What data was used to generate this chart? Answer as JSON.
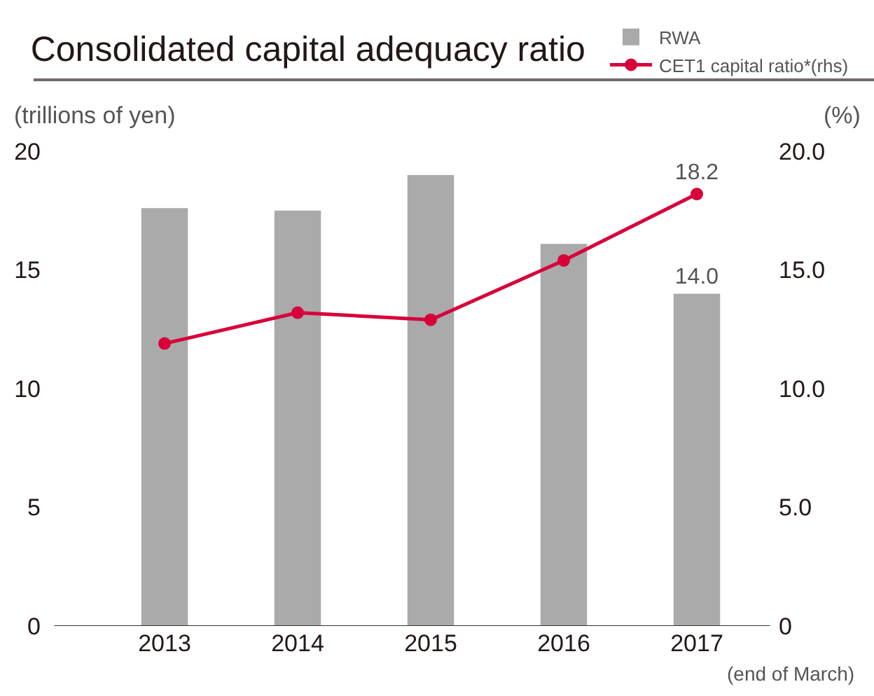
{
  "chart_data": {
    "type": "bar",
    "title": "Consolidated capital adequacy ratio",
    "ylabel": "(trillions of yen)",
    "y2label": "(%)",
    "xlabel": "(end of March)",
    "categories": [
      "2013",
      "2014",
      "2015",
      "2016",
      "2017"
    ],
    "series": [
      {
        "name": "RWA",
        "color": "#aaaaaa",
        "values": [
          17.6,
          17.5,
          19.0,
          16.1,
          14.0
        ],
        "value_labels": [
          null,
          null,
          null,
          null,
          "14.0"
        ]
      },
      {
        "name": "CET1 capital ratio*(rhs)",
        "type": "line",
        "axis": "y2",
        "color": "#d7003a",
        "values": [
          11.9,
          13.2,
          12.9,
          15.4,
          18.2
        ],
        "value_labels": [
          null,
          null,
          null,
          null,
          "18.2"
        ]
      }
    ],
    "ylim": [
      0,
      20
    ],
    "yticks": [
      0,
      5,
      10,
      15,
      20
    ],
    "y2lim": [
      0,
      20
    ],
    "y2ticks": [
      0,
      {
        "value": 5,
        "label": "5.0"
      },
      {
        "value": 10,
        "label": "10.0"
      },
      {
        "value": 15,
        "label": "15.0"
      },
      {
        "value": 20,
        "label": "20.0"
      }
    ],
    "grid": false,
    "legend": "top right",
    "marker": "circle",
    "line_style": "solid"
  }
}
